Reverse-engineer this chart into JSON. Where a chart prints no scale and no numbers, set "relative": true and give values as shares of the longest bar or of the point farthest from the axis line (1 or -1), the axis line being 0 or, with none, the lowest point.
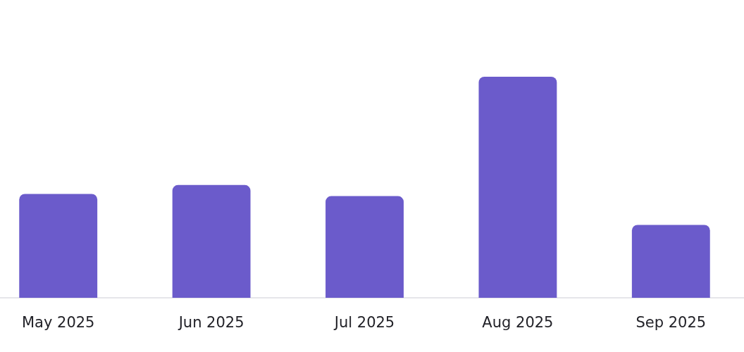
{
  "chart_data": {
    "type": "bar",
    "relative": true,
    "categories": [
      "May 2025",
      "Jun 2025",
      "Jul 2025",
      "Aug 2025",
      "Sep 2025"
    ],
    "values": [
      0.47,
      0.51,
      0.46,
      1,
      0.33
    ],
    "color": "#6b5bcb",
    "grid": false
  }
}
